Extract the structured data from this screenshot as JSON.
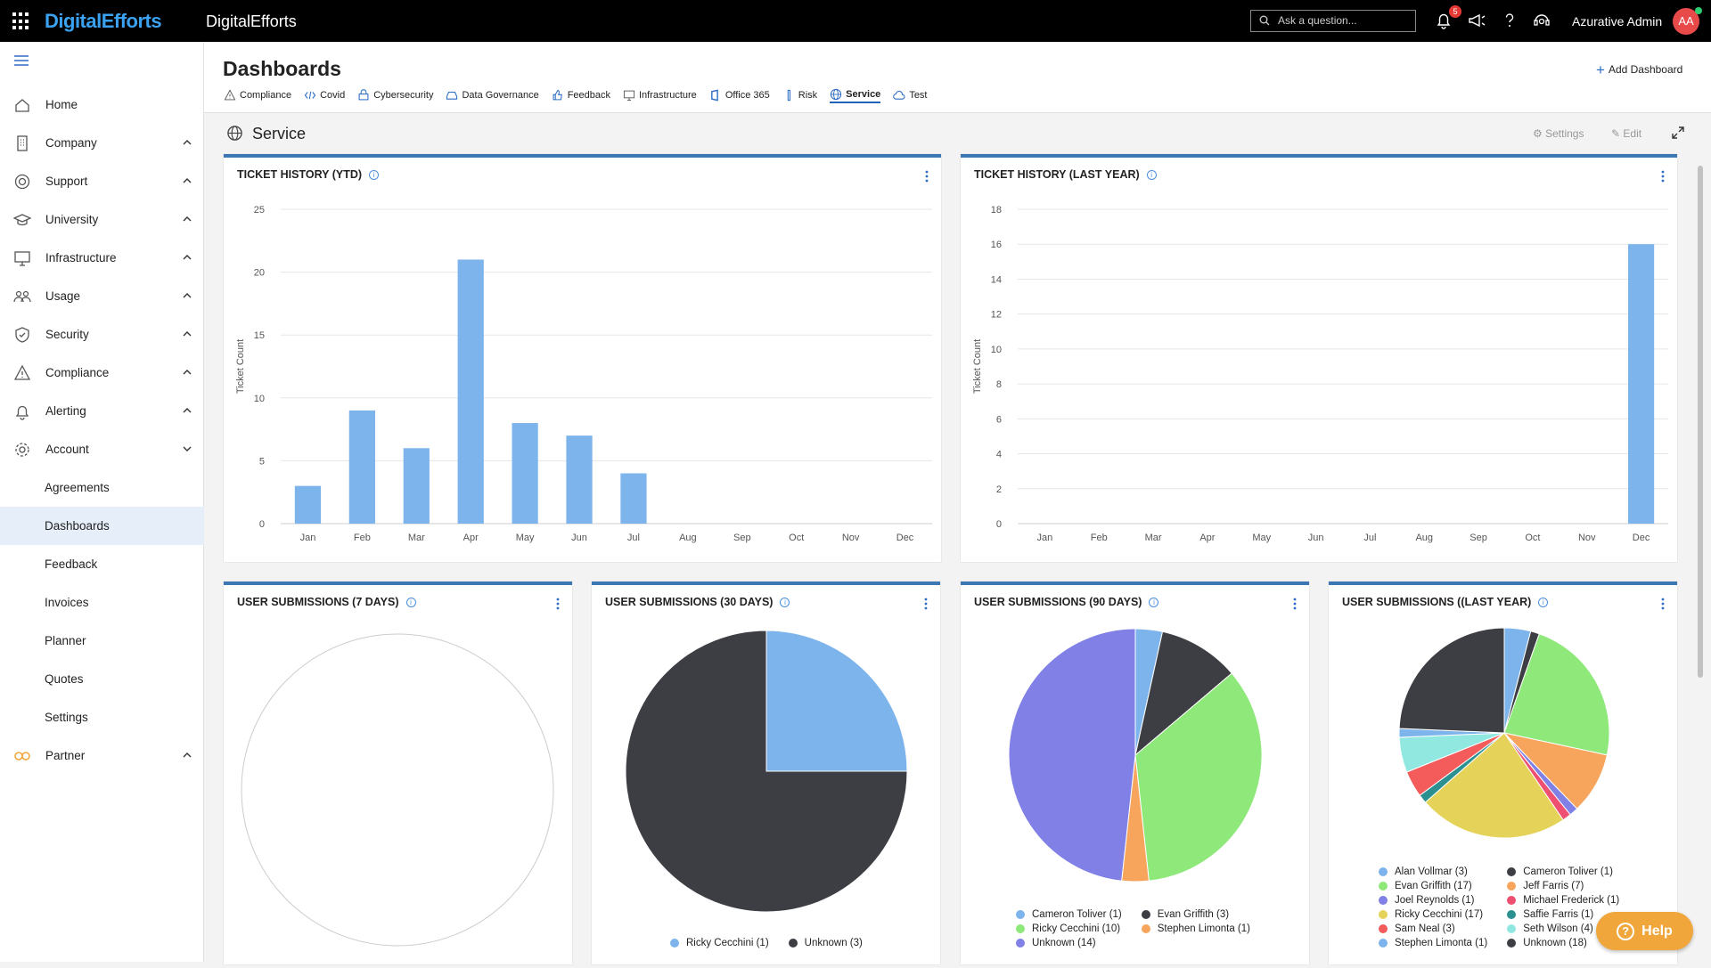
{
  "topbar": {
    "logo": "DigitalEfforts",
    "app_title": "DigitalEfforts",
    "search_placeholder": "Ask a question...",
    "notifications": "5",
    "user_name": "Azurative Admin",
    "avatar_initials": "AA"
  },
  "sidebar": {
    "items": [
      {
        "label": "Home",
        "icon": "home-icon"
      },
      {
        "label": "Company",
        "icon": "building-icon",
        "expand": "up"
      },
      {
        "label": "Support",
        "icon": "lifebuoy-icon",
        "expand": "up"
      },
      {
        "label": "University",
        "icon": "graduation-cap-icon",
        "expand": "up"
      },
      {
        "label": "Infrastructure",
        "icon": "monitor-icon",
        "expand": "up"
      },
      {
        "label": "Usage",
        "icon": "users-icon",
        "expand": "up"
      },
      {
        "label": "Security",
        "icon": "shield-icon",
        "expand": "up"
      },
      {
        "label": "Compliance",
        "icon": "warning-icon",
        "expand": "up"
      },
      {
        "label": "Alerting",
        "icon": "bell-icon",
        "expand": "up"
      },
      {
        "label": "Account",
        "icon": "gear-icon",
        "expand": "down"
      }
    ],
    "sub_items": [
      "Agreements",
      "Dashboards",
      "Feedback",
      "Invoices",
      "Planner",
      "Quotes",
      "Settings"
    ],
    "active_sub": "Dashboards",
    "partner": {
      "label": "Partner",
      "icon": "partner-icon",
      "expand": "up"
    }
  },
  "header": {
    "title": "Dashboards",
    "add_label": "Add Dashboard",
    "tabs": [
      {
        "label": "Compliance",
        "icon": "warning-icon"
      },
      {
        "label": "Covid",
        "icon": "code-icon"
      },
      {
        "label": "Cybersecurity",
        "icon": "cyber-icon"
      },
      {
        "label": "Data Governance",
        "icon": "drive-icon"
      },
      {
        "label": "Feedback",
        "icon": "thumbs-up-icon"
      },
      {
        "label": "Infrastructure",
        "icon": "monitor-icon"
      },
      {
        "label": "Office 365",
        "icon": "office-icon"
      },
      {
        "label": "Risk",
        "icon": "risk-icon"
      },
      {
        "label": "Service",
        "icon": "globe-icon"
      },
      {
        "label": "Test",
        "icon": "cloud-icon"
      }
    ],
    "active_tab": "Service"
  },
  "section": {
    "title": "Service",
    "settings_label": "Settings",
    "edit_label": "Edit"
  },
  "colors": {
    "bar": "#7db4ec",
    "card_border": "#3c78b4",
    "accent": "#1e63b8"
  },
  "chart_data": [
    {
      "type": "bar",
      "title": "TICKET HISTORY (YTD)",
      "ylabel": "Ticket Count",
      "categories": [
        "Jan",
        "Feb",
        "Mar",
        "Apr",
        "May",
        "Jun",
        "Jul",
        "Aug",
        "Sep",
        "Oct",
        "Nov",
        "Dec"
      ],
      "values": [
        3,
        9,
        6,
        21,
        8,
        7,
        4,
        0,
        0,
        0,
        0,
        0
      ],
      "ylim": [
        0,
        25
      ],
      "yticks": [
        0,
        5,
        10,
        15,
        20,
        25
      ]
    },
    {
      "type": "bar",
      "title": "TICKET HISTORY (LAST YEAR)",
      "ylabel": "Ticket Count",
      "categories": [
        "Jan",
        "Feb",
        "Mar",
        "Apr",
        "May",
        "Jun",
        "Jul",
        "Aug",
        "Sep",
        "Oct",
        "Nov",
        "Dec"
      ],
      "values": [
        0,
        0,
        0,
        0,
        0,
        0,
        0,
        0,
        0,
        0,
        0,
        16
      ],
      "ylim": [
        0,
        18
      ],
      "yticks": [
        0,
        2,
        4,
        6,
        8,
        10,
        12,
        14,
        16,
        18
      ]
    },
    {
      "type": "pie",
      "title": "USER SUBMISSIONS (7 DAYS)",
      "slices": []
    },
    {
      "type": "pie",
      "title": "USER SUBMISSIONS (30 DAYS)",
      "slices": [
        {
          "name": "Ricky Cecchini (1)",
          "value": 1,
          "color": "#7db4ec"
        },
        {
          "name": "Unknown (3)",
          "value": 3,
          "color": "#3d3e44"
        }
      ]
    },
    {
      "type": "pie",
      "title": "USER SUBMISSIONS (90 DAYS)",
      "slices": [
        {
          "name": "Cameron Toliver (1)",
          "value": 1,
          "color": "#7db4ec"
        },
        {
          "name": "Evan Griffith (3)",
          "value": 3,
          "color": "#3d3e44"
        },
        {
          "name": "Ricky Cecchini (10)",
          "value": 10,
          "color": "#8ee87a"
        },
        {
          "name": "Stephen Limonta (1)",
          "value": 1,
          "color": "#f7a55c"
        },
        {
          "name": "Unknown (14)",
          "value": 14,
          "color": "#8080e6"
        }
      ]
    },
    {
      "type": "pie",
      "title": "USER SUBMISSIONS ((LAST YEAR)",
      "slices": [
        {
          "name": "Alan Vollmar (3)",
          "value": 3,
          "color": "#7db4ec"
        },
        {
          "name": "Cameron Toliver (1)",
          "value": 1,
          "color": "#3d3e44"
        },
        {
          "name": "Evan Griffith (17)",
          "value": 17,
          "color": "#8ee87a"
        },
        {
          "name": "Jeff Farris (7)",
          "value": 7,
          "color": "#f7a55c"
        },
        {
          "name": "Joel Reynolds (1)",
          "value": 1,
          "color": "#8080e6"
        },
        {
          "name": "Michael Frederick (1)",
          "value": 1,
          "color": "#ef4f70"
        },
        {
          "name": "Ricky Cecchini (17)",
          "value": 17,
          "color": "#e4d358"
        },
        {
          "name": "Saffie Farris (1)",
          "value": 1,
          "color": "#2b908f"
        },
        {
          "name": "Sam Neal (3)",
          "value": 3,
          "color": "#f45b5b"
        },
        {
          "name": "Seth Wilson (4)",
          "value": 4,
          "color": "#91e8e1"
        },
        {
          "name": "Stephen Limonta (1)",
          "value": 1,
          "color": "#7db4ec"
        },
        {
          "name": "Unknown (18)",
          "value": 18,
          "color": "#3d3e44"
        }
      ]
    }
  ],
  "help": {
    "label": "Help"
  }
}
